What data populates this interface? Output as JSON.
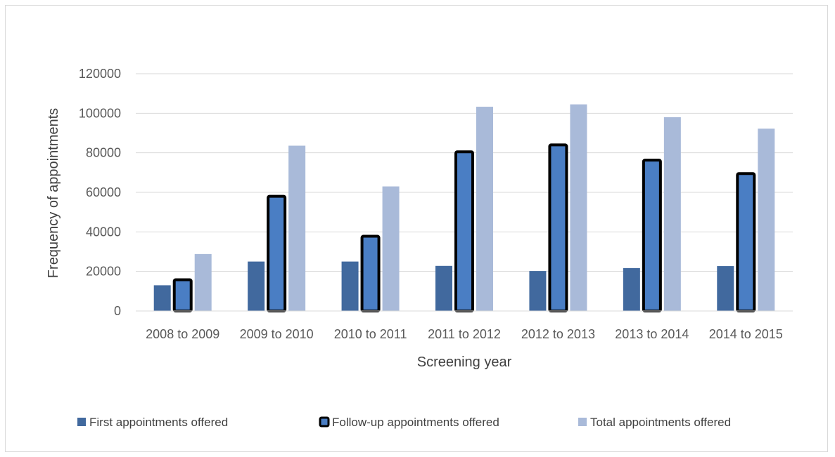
{
  "chart_data": {
    "type": "bar",
    "title": "",
    "xlabel": "Screening year",
    "ylabel": "Frequency of appointments",
    "ylim": [
      0,
      120000
    ],
    "yticks": [
      0,
      20000,
      40000,
      60000,
      80000,
      100000,
      120000
    ],
    "ytick_labels": [
      "0",
      "20000",
      "40000",
      "60000",
      "80000",
      "100000",
      "120000"
    ],
    "categories": [
      "2008 to 2009",
      "2009 to 2010",
      "2010 to 2011",
      "2011 to 2012",
      "2012 to 2013",
      "2013 to 2014",
      "2014 to 2015"
    ],
    "grid": true,
    "legend_position": "bottom",
    "series": [
      {
        "name": "First appointments offered",
        "color": "#41699e",
        "outlined": false,
        "values": [
          13000,
          25000,
          25000,
          22800,
          20200,
          21700,
          22700
        ]
      },
      {
        "name": "Follow-up appointments offered",
        "color": "#4a7ec4",
        "outlined": true,
        "values": [
          15800,
          58000,
          37800,
          80500,
          84000,
          76300,
          69500
        ]
      },
      {
        "name": "Total appointments offered",
        "color": "#a9bad9",
        "outlined": false,
        "values": [
          28800,
          83600,
          63000,
          103300,
          104500,
          98000,
          92200
        ]
      }
    ]
  }
}
